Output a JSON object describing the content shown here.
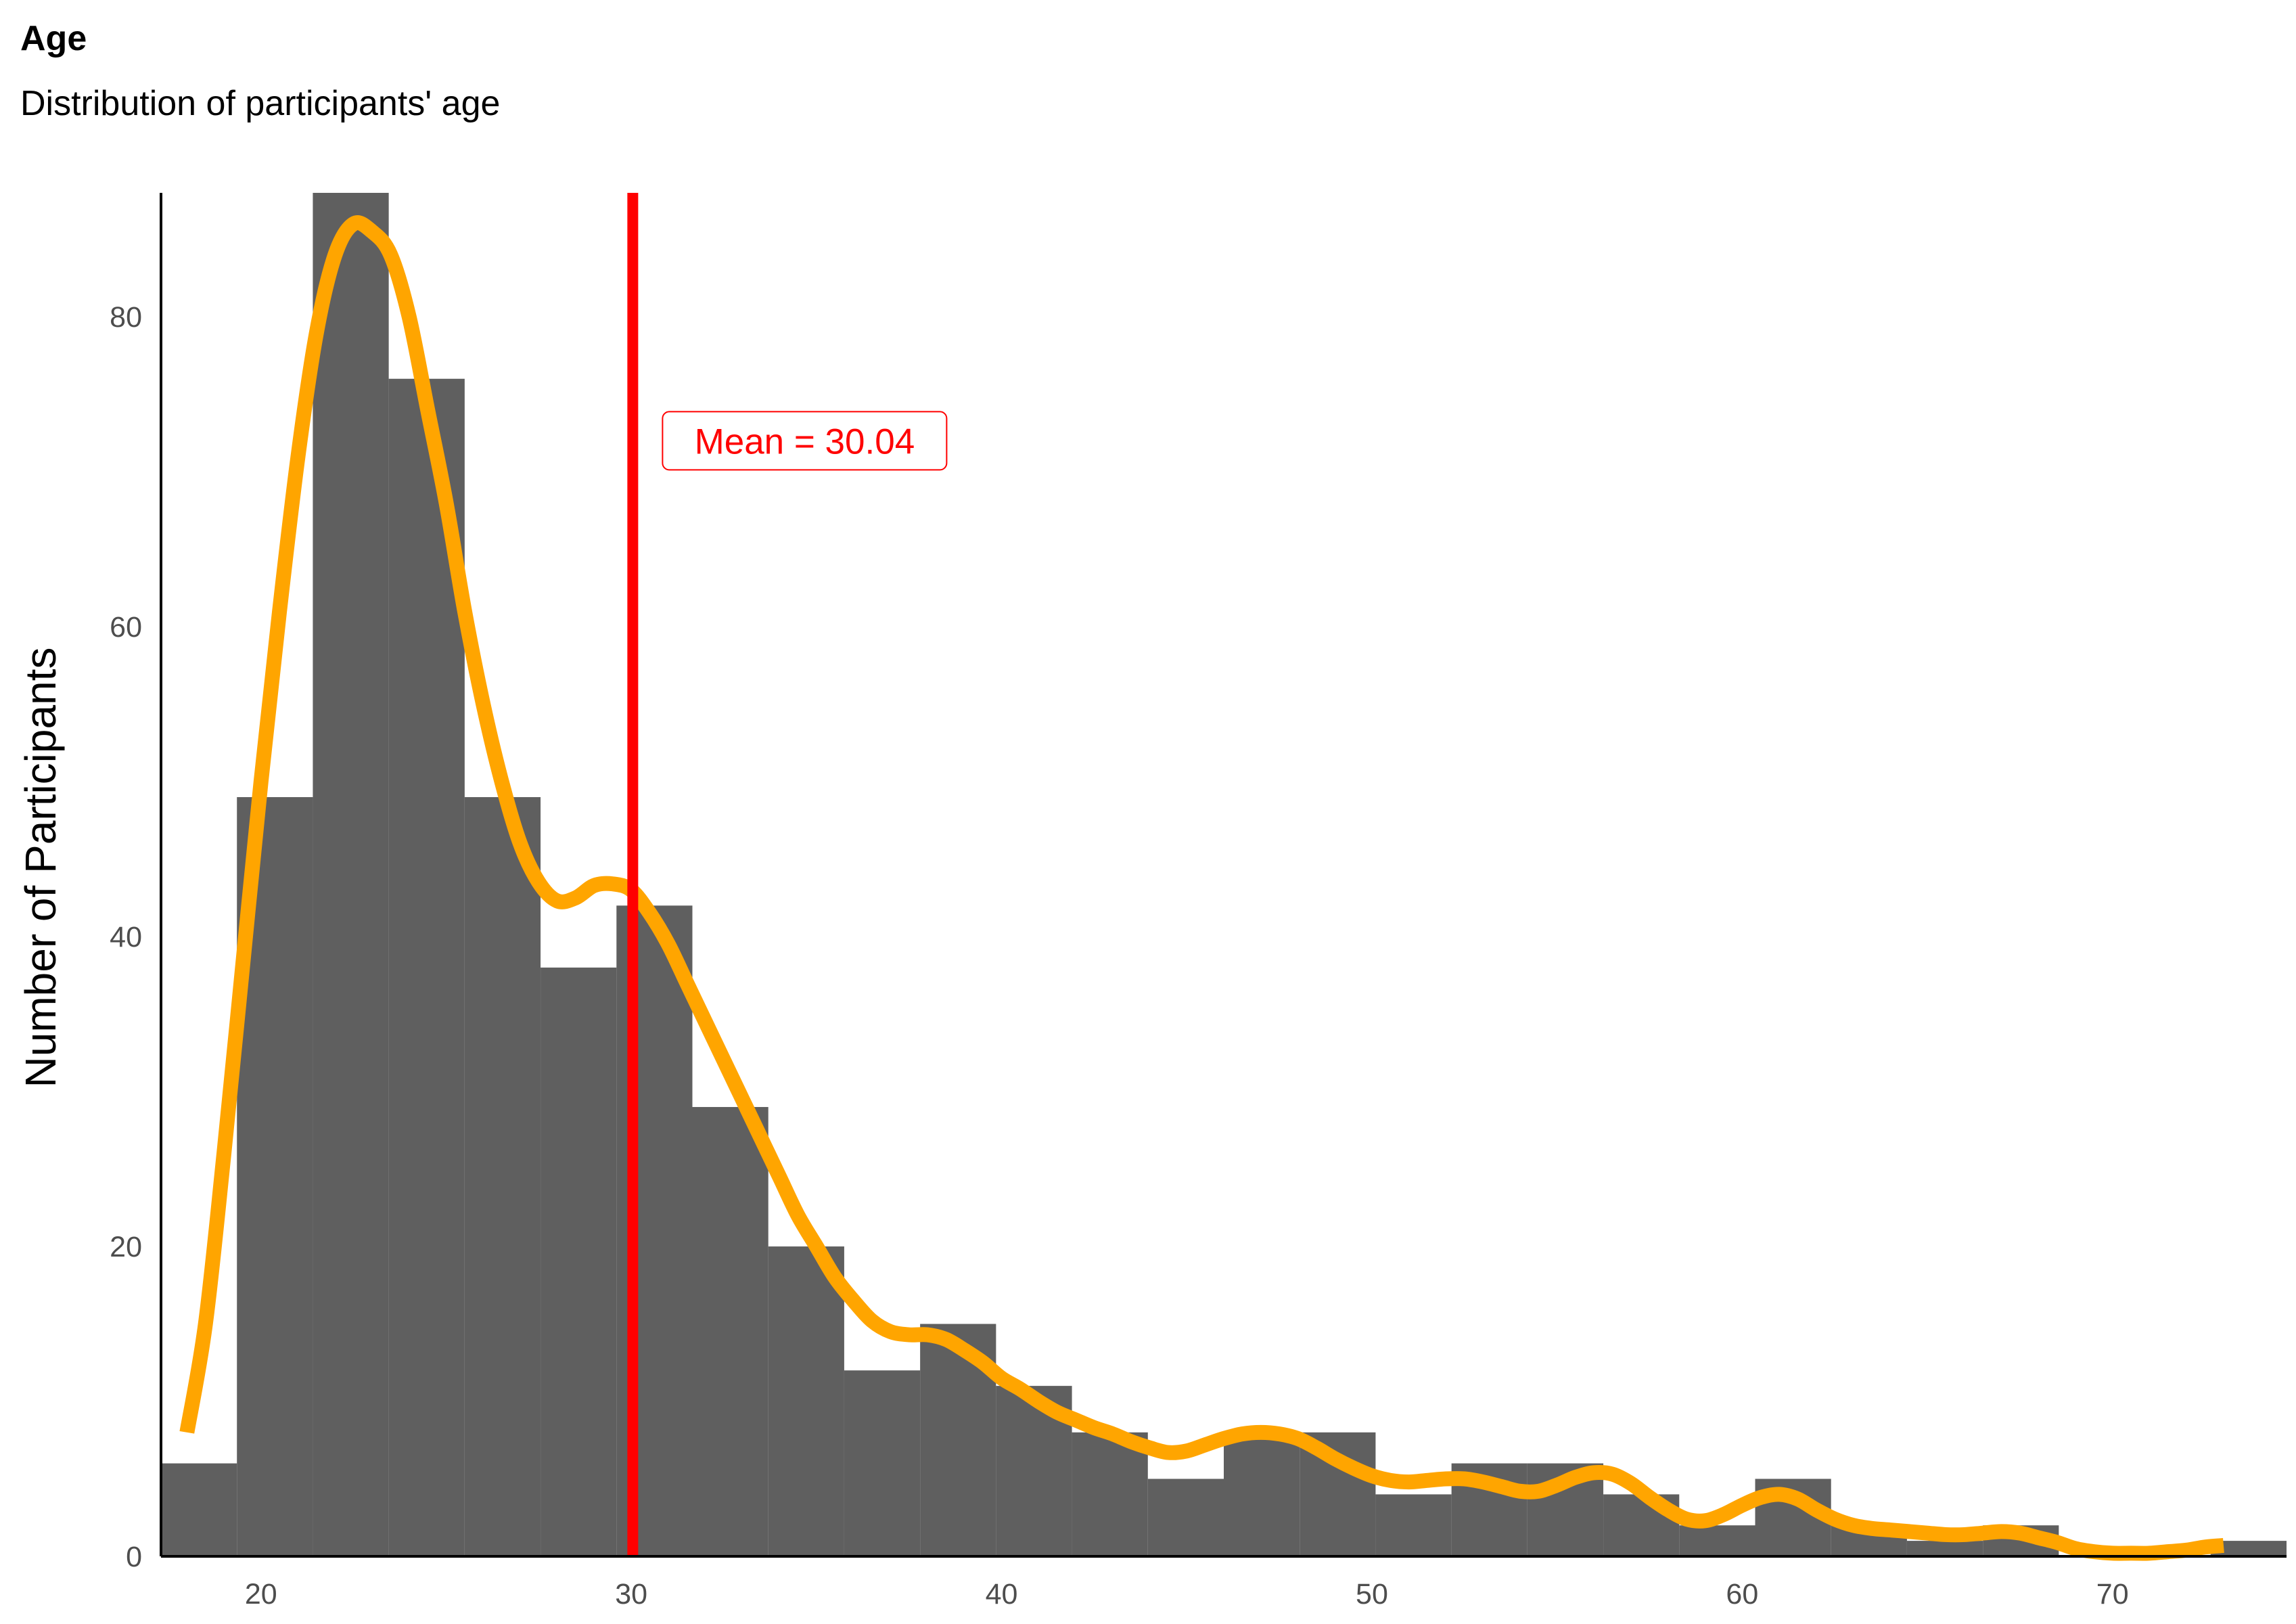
{
  "chart_data": {
    "type": "bar",
    "title": "Age",
    "subtitle": "Distribution of participants' age",
    "xlabel": "",
    "ylabel": "Number of Participants",
    "xlim": [
      17.3,
      74.7
    ],
    "ylim": [
      0,
      88
    ],
    "x_ticks": [
      20,
      30,
      40,
      50,
      60,
      70
    ],
    "y_ticks": [
      0,
      20,
      40,
      60,
      80
    ],
    "grid": false,
    "bins": [
      {
        "x0": 17.3,
        "x1": 19.35,
        "count": 6
      },
      {
        "x0": 19.35,
        "x1": 21.4,
        "count": 49
      },
      {
        "x0": 21.4,
        "x1": 23.45,
        "count": 88
      },
      {
        "x0": 23.45,
        "x1": 25.5,
        "count": 76
      },
      {
        "x0": 25.5,
        "x1": 27.55,
        "count": 49
      },
      {
        "x0": 27.55,
        "x1": 29.6,
        "count": 38
      },
      {
        "x0": 29.6,
        "x1": 31.65,
        "count": 42
      },
      {
        "x0": 31.65,
        "x1": 33.7,
        "count": 29
      },
      {
        "x0": 33.7,
        "x1": 35.75,
        "count": 20
      },
      {
        "x0": 35.75,
        "x1": 37.8,
        "count": 12
      },
      {
        "x0": 37.8,
        "x1": 39.85,
        "count": 15
      },
      {
        "x0": 39.85,
        "x1": 41.9,
        "count": 11
      },
      {
        "x0": 41.9,
        "x1": 43.95,
        "count": 8
      },
      {
        "x0": 43.95,
        "x1": 46.0,
        "count": 5
      },
      {
        "x0": 46.0,
        "x1": 48.05,
        "count": 8
      },
      {
        "x0": 48.05,
        "x1": 50.1,
        "count": 8
      },
      {
        "x0": 50.1,
        "x1": 52.15,
        "count": 4
      },
      {
        "x0": 52.15,
        "x1": 54.2,
        "count": 6
      },
      {
        "x0": 54.2,
        "x1": 56.25,
        "count": 6
      },
      {
        "x0": 56.25,
        "x1": 58.3,
        "count": 4
      },
      {
        "x0": 58.3,
        "x1": 60.35,
        "count": 2
      },
      {
        "x0": 60.35,
        "x1": 62.4,
        "count": 5
      },
      {
        "x0": 62.4,
        "x1": 64.45,
        "count": 2
      },
      {
        "x0": 64.45,
        "x1": 66.5,
        "count": 1
      },
      {
        "x0": 66.5,
        "x1": 68.55,
        "count": 2
      },
      {
        "x0": 68.55,
        "x1": 70.6,
        "count": 0
      },
      {
        "x0": 70.6,
        "x1": 72.65,
        "count": 0
      },
      {
        "x0": 72.65,
        "x1": 74.7,
        "count": 1
      }
    ],
    "density_curve": [
      [
        18.0,
        8
      ],
      [
        18.5,
        15
      ],
      [
        19.0,
        26
      ],
      [
        19.5,
        38
      ],
      [
        20.0,
        50
      ],
      [
        20.5,
        61
      ],
      [
        21.0,
        71
      ],
      [
        21.5,
        79
      ],
      [
        22.0,
        84
      ],
      [
        22.5,
        86
      ],
      [
        23.0,
        85.5
      ],
      [
        23.5,
        84
      ],
      [
        24.0,
        80
      ],
      [
        24.5,
        74
      ],
      [
        25.0,
        68
      ],
      [
        25.5,
        61
      ],
      [
        26.0,
        55
      ],
      [
        26.5,
        50
      ],
      [
        27.0,
        46
      ],
      [
        27.5,
        43.5
      ],
      [
        28.0,
        42.3
      ],
      [
        28.5,
        42.5
      ],
      [
        29.0,
        43.3
      ],
      [
        29.5,
        43.4
      ],
      [
        30.0,
        43.0
      ],
      [
        30.5,
        41.5
      ],
      [
        31.0,
        39.5
      ],
      [
        31.5,
        37
      ],
      [
        32.0,
        34.5
      ],
      [
        32.5,
        32
      ],
      [
        33.0,
        29.5
      ],
      [
        33.5,
        27
      ],
      [
        34.0,
        24.5
      ],
      [
        34.5,
        22
      ],
      [
        35.0,
        20
      ],
      [
        35.5,
        18
      ],
      [
        36.0,
        16.5
      ],
      [
        36.5,
        15.2
      ],
      [
        37.0,
        14.5
      ],
      [
        37.5,
        14.3
      ],
      [
        38.0,
        14.3
      ],
      [
        38.5,
        14.0
      ],
      [
        39.0,
        13.3
      ],
      [
        39.5,
        12.5
      ],
      [
        40.0,
        11.5
      ],
      [
        40.5,
        10.8
      ],
      [
        41.0,
        10.0
      ],
      [
        41.5,
        9.3
      ],
      [
        42.0,
        8.8
      ],
      [
        42.5,
        8.3
      ],
      [
        43.0,
        7.9
      ],
      [
        43.5,
        7.4
      ],
      [
        44.0,
        7.0
      ],
      [
        44.5,
        6.7
      ],
      [
        45.0,
        6.8
      ],
      [
        45.5,
        7.2
      ],
      [
        46.0,
        7.6
      ],
      [
        46.5,
        7.9
      ],
      [
        47.0,
        8.0
      ],
      [
        47.5,
        7.9
      ],
      [
        48.0,
        7.6
      ],
      [
        48.5,
        7.0
      ],
      [
        49.0,
        6.3
      ],
      [
        49.5,
        5.7
      ],
      [
        50.0,
        5.2
      ],
      [
        50.5,
        4.9
      ],
      [
        51.0,
        4.8
      ],
      [
        51.5,
        4.9
      ],
      [
        52.0,
        5.0
      ],
      [
        52.5,
        5.0
      ],
      [
        53.0,
        4.8
      ],
      [
        53.5,
        4.5
      ],
      [
        54.0,
        4.2
      ],
      [
        54.5,
        4.2
      ],
      [
        55.0,
        4.6
      ],
      [
        55.5,
        5.1
      ],
      [
        56.0,
        5.4
      ],
      [
        56.5,
        5.3
      ],
      [
        57.0,
        4.7
      ],
      [
        57.5,
        3.8
      ],
      [
        58.0,
        3.0
      ],
      [
        58.5,
        2.4
      ],
      [
        59.0,
        2.3
      ],
      [
        59.5,
        2.7
      ],
      [
        60.0,
        3.3
      ],
      [
        60.5,
        3.8
      ],
      [
        61.0,
        4.0
      ],
      [
        61.5,
        3.7
      ],
      [
        62.0,
        3.0
      ],
      [
        62.5,
        2.4
      ],
      [
        63.0,
        2.0
      ],
      [
        63.5,
        1.8
      ],
      [
        64.0,
        1.7
      ],
      [
        64.5,
        1.6
      ],
      [
        65.0,
        1.5
      ],
      [
        65.5,
        1.4
      ],
      [
        66.0,
        1.4
      ],
      [
        66.5,
        1.5
      ],
      [
        67.0,
        1.6
      ],
      [
        67.5,
        1.5
      ],
      [
        68.0,
        1.2
      ],
      [
        68.5,
        0.9
      ],
      [
        69.0,
        0.5
      ],
      [
        69.5,
        0.3
      ],
      [
        70.0,
        0.2
      ],
      [
        70.5,
        0.2
      ],
      [
        71.0,
        0.2
      ],
      [
        71.5,
        0.3
      ],
      [
        72.0,
        0.4
      ],
      [
        72.5,
        0.6
      ],
      [
        73.0,
        0.7
      ]
    ],
    "mean_line": {
      "x": 30.04,
      "label": "Mean = 30.04",
      "label_y": 72
    },
    "colors": {
      "bars": "#5f5f5f",
      "density": "#ffa500",
      "mean": "#ff0000",
      "axis": "#000000",
      "tick_text": "#4d4d4d"
    }
  }
}
